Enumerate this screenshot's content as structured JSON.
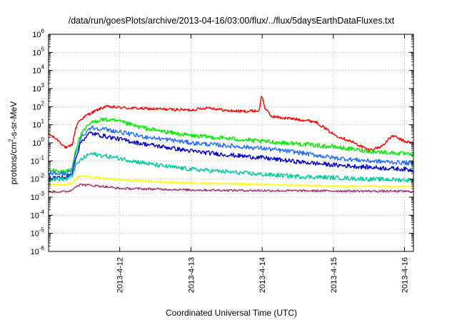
{
  "chart_data": {
    "type": "line",
    "title": "/data/run/goesPlots/archive/2013-04-16/03:00/flux/../flux/5daysEarthDataFluxes.txt",
    "xlabel": "Coordinated Universal Time (UTC)",
    "ylabel": "protons/cm2-s-sr-MeV",
    "ylabel_parts": {
      "base": "protons/cm",
      "sup": "2",
      "rest": "-s-sr-MeV"
    },
    "y_scale": "log",
    "ylim": [
      1e-06,
      1000000.0
    ],
    "y_ticks": [
      {
        "exp": "-6",
        "value": 1e-06
      },
      {
        "exp": "-5",
        "value": 1e-05
      },
      {
        "exp": "-4",
        "value": 0.0001
      },
      {
        "exp": "-3",
        "value": 0.001
      },
      {
        "exp": "-2",
        "value": 0.01
      },
      {
        "exp": "-1",
        "value": 0.1
      },
      {
        "exp": "0",
        "value": 1
      },
      {
        "exp": "1",
        "value": 10
      },
      {
        "exp": "2",
        "value": 100
      },
      {
        "exp": "3",
        "value": 1000
      },
      {
        "exp": "4",
        "value": 10000.0
      },
      {
        "exp": "5",
        "value": 100000.0
      },
      {
        "exp": "6",
        "value": 1000000.0
      }
    ],
    "tick_base": "10",
    "xlim": [
      "2013-04-11 00:00",
      "2013-04-16 03:00"
    ],
    "x_ticks": [
      {
        "label": "2013-4-12",
        "value": "2013-04-12 00:00"
      },
      {
        "label": "2013-4-13",
        "value": "2013-04-13 00:00"
      },
      {
        "label": "2013-4-14",
        "value": "2013-04-14 00:00"
      },
      {
        "label": "2013-4-15",
        "value": "2013-04-15 00:00"
      },
      {
        "label": "2013-4-16",
        "value": "2013-04-16 00:00"
      }
    ],
    "grid": true,
    "legend": "none",
    "series": [
      {
        "color": "#ff0000",
        "x": [
          "2013-04-11 00:00",
          "2013-04-11 03:00",
          "2013-04-11 06:00",
          "2013-04-11 08:00",
          "2013-04-11 09:00",
          "2013-04-11 10:00",
          "2013-04-11 13:00",
          "2013-04-11 16:00",
          "2013-04-11 19:00",
          "2013-04-12 00:00",
          "2013-04-12 06:00",
          "2013-04-12 12:00",
          "2013-04-12 18:00",
          "2013-04-13 00:00",
          "2013-04-13 06:00",
          "2013-04-13 12:00",
          "2013-04-13 18:00",
          "2013-04-13 23:00",
          "2013-04-13 23:50",
          "2013-04-14 01:00",
          "2013-04-14 03:00",
          "2013-04-14 06:00",
          "2013-04-14 12:00",
          "2013-04-14 18:00",
          "2013-04-15 00:00",
          "2013-04-15 06:00",
          "2013-04-15 12:00",
          "2013-04-15 16:00",
          "2013-04-15 20:00",
          "2013-04-16 00:00",
          "2013-04-16 03:00"
        ],
        "values": [
          3.0,
          1.5,
          0.5,
          0.8,
          5,
          15,
          35,
          60,
          100,
          90,
          80,
          75,
          70,
          65,
          90,
          60,
          55,
          60,
          450,
          80,
          30,
          25,
          20,
          15,
          3,
          1.2,
          0.4,
          0.6,
          2.5,
          1.2,
          1.0
        ]
      },
      {
        "color": "#00ee00",
        "x": [
          "2013-04-11 00:00",
          "2013-04-11 06:00",
          "2013-04-11 08:00",
          "2013-04-11 09:00",
          "2013-04-11 11:00",
          "2013-04-11 14:00",
          "2013-04-11 18:00",
          "2013-04-12 00:00",
          "2013-04-12 06:00",
          "2013-04-12 12:00",
          "2013-04-12 18:00",
          "2013-04-13 00:00",
          "2013-04-13 12:00",
          "2013-04-14 00:00",
          "2013-04-14 12:00",
          "2013-04-15 00:00",
          "2013-04-15 12:00",
          "2013-04-16 00:00",
          "2013-04-16 03:00"
        ],
        "values": [
          0.03,
          0.025,
          0.04,
          0.4,
          3,
          12,
          20,
          15,
          8,
          5,
          3.5,
          2.5,
          1.8,
          1.2,
          0.9,
          0.6,
          0.35,
          0.25,
          0.2
        ]
      },
      {
        "color": "#1e6eff",
        "x": [
          "2013-04-11 00:00",
          "2013-04-11 06:00",
          "2013-04-11 08:00",
          "2013-04-11 09:00",
          "2013-04-11 11:00",
          "2013-04-11 14:00",
          "2013-04-11 18:00",
          "2013-04-12 00:00",
          "2013-04-12 06:00",
          "2013-04-12 12:00",
          "2013-04-12 18:00",
          "2013-04-13 00:00",
          "2013-04-13 12:00",
          "2013-04-14 00:00",
          "2013-04-14 12:00",
          "2013-04-15 00:00",
          "2013-04-15 12:00",
          "2013-04-16 00:00",
          "2013-04-16 03:00"
        ],
        "values": [
          0.02,
          0.02,
          0.03,
          0.2,
          2,
          7,
          6,
          4,
          2.5,
          1.8,
          1.4,
          1.0,
          0.7,
          0.5,
          0.3,
          0.15,
          0.1,
          0.08,
          0.07
        ]
      },
      {
        "color": "#0000cc",
        "x": [
          "2013-04-11 00:00",
          "2013-04-11 06:00",
          "2013-04-11 08:00",
          "2013-04-11 09:00",
          "2013-04-11 11:00",
          "2013-04-11 14:00",
          "2013-04-11 18:00",
          "2013-04-12 00:00",
          "2013-04-12 06:00",
          "2013-04-12 12:00",
          "2013-04-12 18:00",
          "2013-04-13 00:00",
          "2013-04-13 12:00",
          "2013-04-14 00:00",
          "2013-04-14 12:00",
          "2013-04-15 00:00",
          "2013-04-15 12:00",
          "2013-04-16 00:00",
          "2013-04-16 03:00"
        ],
        "values": [
          0.012,
          0.012,
          0.02,
          0.12,
          1.2,
          3.5,
          2.5,
          1.6,
          1.0,
          0.7,
          0.5,
          0.35,
          0.22,
          0.15,
          0.09,
          0.06,
          0.045,
          0.035,
          0.03
        ]
      },
      {
        "color": "#00c8a0",
        "x": [
          "2013-04-11 00:00",
          "2013-04-11 06:00",
          "2013-04-11 08:00",
          "2013-04-11 09:00",
          "2013-04-11 11:00",
          "2013-04-11 14:00",
          "2013-04-11 18:00",
          "2013-04-12 00:00",
          "2013-04-12 06:00",
          "2013-04-12 12:00",
          "2013-04-12 18:00",
          "2013-04-13 00:00",
          "2013-04-13 12:00",
          "2013-04-14 00:00",
          "2013-04-14 12:00",
          "2013-04-15 00:00",
          "2013-04-15 12:00",
          "2013-04-16 00:00",
          "2013-04-16 03:00"
        ],
        "values": [
          0.01,
          0.01,
          0.015,
          0.05,
          0.12,
          0.25,
          0.2,
          0.14,
          0.09,
          0.06,
          0.045,
          0.035,
          0.025,
          0.018,
          0.014,
          0.012,
          0.01,
          0.009,
          0.008
        ]
      },
      {
        "color": "#ffff00",
        "x": [
          "2013-04-11 00:00",
          "2013-04-11 06:00",
          "2013-04-11 08:00",
          "2013-04-11 09:00",
          "2013-04-11 11:00",
          "2013-04-11 14:00",
          "2013-04-11 18:00",
          "2013-04-12 00:00",
          "2013-04-12 12:00",
          "2013-04-13 00:00",
          "2013-04-14 00:00",
          "2013-04-15 00:00",
          "2013-04-16 00:00",
          "2013-04-16 03:00"
        ],
        "values": [
          0.005,
          0.005,
          0.006,
          0.01,
          0.015,
          0.013,
          0.011,
          0.009,
          0.007,
          0.006,
          0.005,
          0.004,
          0.004,
          0.004
        ]
      },
      {
        "color": "#a0306a",
        "x": [
          "2013-04-11 00:00",
          "2013-04-11 06:00",
          "2013-04-11 08:00",
          "2013-04-11 09:00",
          "2013-04-11 11:00",
          "2013-04-11 14:00",
          "2013-04-11 18:00",
          "2013-04-12 00:00",
          "2013-04-12 12:00",
          "2013-04-13 00:00",
          "2013-04-14 00:00",
          "2013-04-15 00:00",
          "2013-04-16 00:00",
          "2013-04-16 03:00"
        ],
        "values": [
          0.002,
          0.002,
          0.0025,
          0.004,
          0.005,
          0.0045,
          0.004,
          0.003,
          0.0028,
          0.0025,
          0.0023,
          0.0022,
          0.0021,
          0.002
        ]
      }
    ]
  }
}
